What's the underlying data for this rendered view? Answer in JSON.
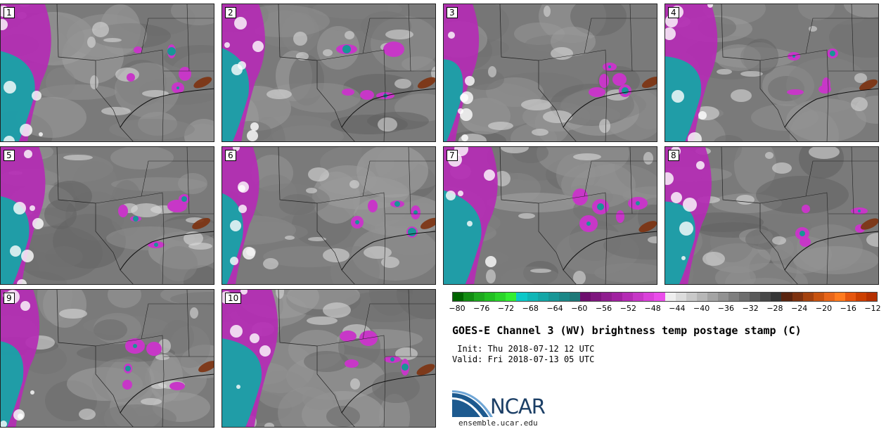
{
  "panels": [
    {
      "label": "1"
    },
    {
      "label": "2"
    },
    {
      "label": "3"
    },
    {
      "label": "4"
    },
    {
      "label": "5"
    },
    {
      "label": "6"
    },
    {
      "label": "7"
    },
    {
      "label": "8"
    },
    {
      "label": "9"
    },
    {
      "label": "10"
    }
  ],
  "colorbar": {
    "colors": [
      "#006400",
      "#128c12",
      "#1ea81e",
      "#22bf22",
      "#2ad52a",
      "#33ee33",
      "#0cc8c8",
      "#10b6b6",
      "#14a6a6",
      "#189696",
      "#1b8787",
      "#1e7878",
      "#6e0f6e",
      "#7e167e",
      "#8f1e8f",
      "#a021a0",
      "#b42bb4",
      "#c737c7",
      "#da41da",
      "#ea4dea",
      "#eeeeee",
      "#dcdcdc",
      "#c9c9c9",
      "#b7b7b7",
      "#a4a4a4",
      "#929292",
      "#7f7f7f",
      "#6d6d6d",
      "#5a5a5a",
      "#484848",
      "#363636",
      "#5a2510",
      "#7d3210",
      "#a4420f",
      "#c85310",
      "#e8661a",
      "#ff7b1f",
      "#e6560e",
      "#cc3f00",
      "#b53000"
    ],
    "ticks": [
      "−80",
      "−76",
      "−72",
      "−68",
      "−64",
      "−60",
      "−56",
      "−52",
      "−48",
      "−44",
      "−40",
      "−36",
      "−32",
      "−28",
      "−24",
      "−20",
      "−16",
      "−12"
    ]
  },
  "title": "GOES-E Channel 3 (WV) brightness temp postage stamp (C)",
  "init": " Init: Thu 2018-07-12 12 UTC",
  "valid": "Valid: Fri 2018-07-13 05 UTC",
  "logo": {
    "text": "NCAR",
    "url": "ensemble.ucar.edu"
  }
}
